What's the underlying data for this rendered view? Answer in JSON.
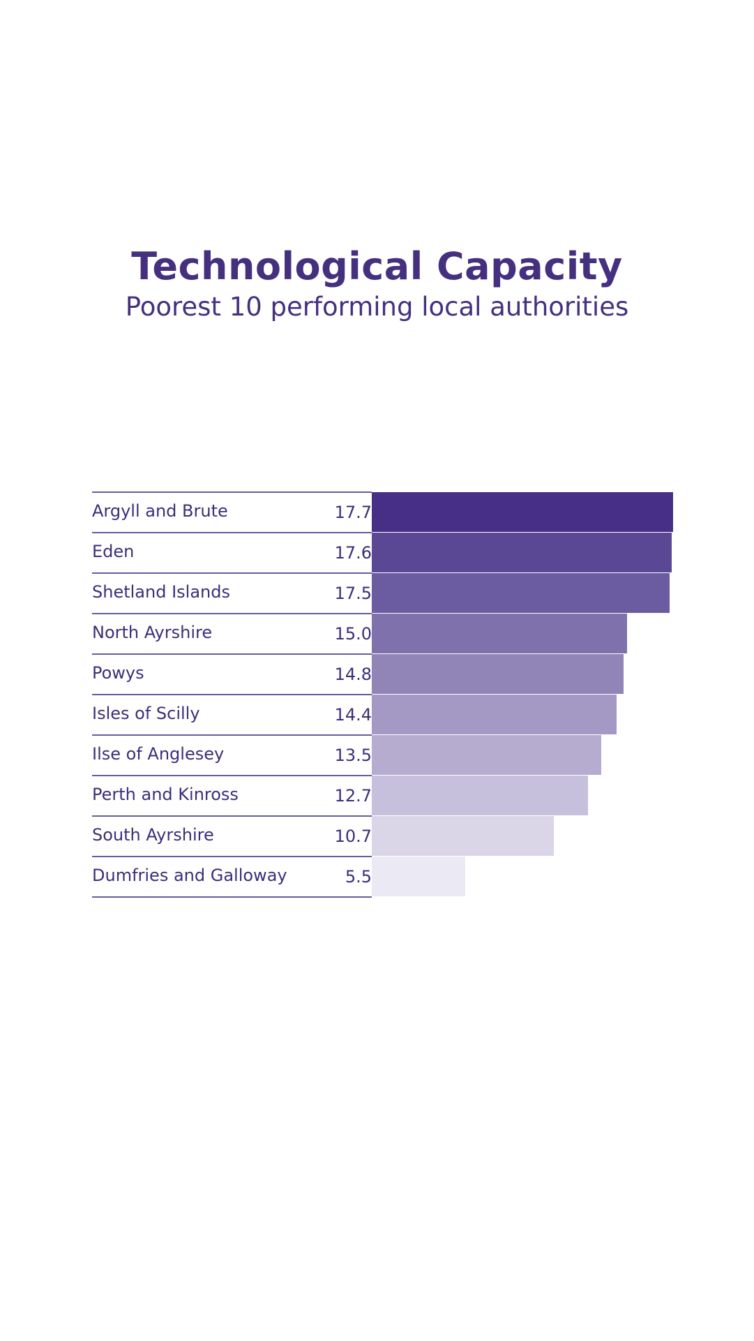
{
  "chart_data": {
    "type": "bar",
    "orientation": "horizontal",
    "title": "Technological Capacity",
    "subtitle": "Poorest 10 performing local authorities",
    "categories": [
      "Argyll and Brute",
      "Eden",
      "Shetland Islands",
      "North Ayrshire",
      "Powys",
      "Isles of Scilly",
      "Ilse of Anglesey",
      "Perth and Kinross",
      "South Ayrshire",
      "Dumfries and Galloway"
    ],
    "values": [
      17.7,
      17.6,
      17.5,
      15.0,
      14.8,
      14.4,
      13.5,
      12.7,
      10.7,
      5.5
    ],
    "value_labels": [
      "17.7",
      "17.6",
      "17.5",
      "15.0",
      "14.8",
      "14.4",
      "13.5",
      "12.7",
      "10.7",
      "5.5"
    ],
    "colors": [
      "#472f87",
      "#5a4894",
      "#6b5ba0",
      "#7f71ab",
      "#9184b7",
      "#a499c4",
      "#b6acd0",
      "#c7c0dc",
      "#dad6e8",
      "#ebe9f3"
    ],
    "xlim": [
      0,
      17.7
    ],
    "grid": false,
    "legend": "none"
  }
}
